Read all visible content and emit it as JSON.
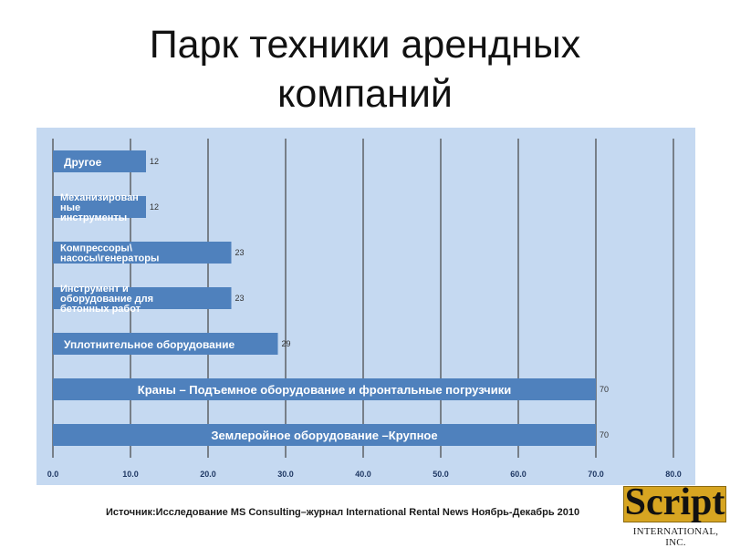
{
  "slide": {
    "title_line1": "Парк техники арендных",
    "title_line2": "компаний",
    "source": "Источник:Исследование MS Consulting–журнал International Rental News Ноябрь-Декабрь 2010",
    "logo": {
      "word": "Script",
      "subtitle": "INTERNATIONAL, INC."
    }
  },
  "chart_data": {
    "type": "bar",
    "orientation": "horizontal",
    "categories": [
      [
        "Другое"
      ],
      [
        "Механизирован",
        "ные",
        "инструменты"
      ],
      [
        "Компрессоры\\",
        "насосы\\генераторы"
      ],
      [
        "Инструмент и",
        "оборудование для",
        "бетонных работ"
      ],
      [
        "Уплотнительное оборудование"
      ],
      [
        "Краны – Подъемное оборудование и фронтальные погрузчики"
      ],
      [
        "Землеройное оборудование –Крупное"
      ]
    ],
    "values": [
      12,
      12,
      23,
      23,
      29,
      70,
      70
    ],
    "xlim": [
      0,
      80
    ],
    "xticks": [
      "0.0",
      "10.0",
      "20.0",
      "30.0",
      "40.0",
      "50.0",
      "60.0",
      "70.0",
      "80.0"
    ],
    "grid": true,
    "colors": {
      "background": "#c5d9f1",
      "bar": "#4f81bd",
      "grid": "#444444",
      "text": "#ffffff"
    }
  }
}
